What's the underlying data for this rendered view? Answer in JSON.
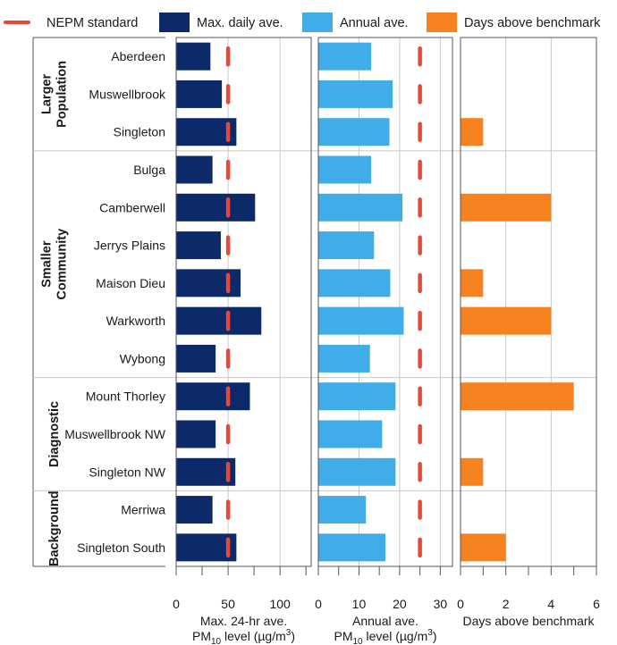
{
  "chart_data": {
    "type": "bar",
    "orientation": "horizontal",
    "legend": {
      "placement": "top",
      "items": [
        {
          "label": "NEPM standard",
          "color": "#e8483a",
          "kind": "dashed-line"
        },
        {
          "label": "Max. daily ave.",
          "color": "#0c2a6a",
          "kind": "box"
        },
        {
          "label": "Annual ave.",
          "color": "#41ade8",
          "kind": "box"
        },
        {
          "label": "Days above benchmark",
          "color": "#f5821f",
          "kind": "box"
        }
      ]
    },
    "groups": [
      {
        "name": "Larger Population",
        "lines": [
          "Larger",
          "Population"
        ],
        "stations": [
          "Aberdeen",
          "Muswellbrook",
          "Singleton"
        ]
      },
      {
        "name": "Smaller Community",
        "lines": [
          "Smaller",
          "Community"
        ],
        "stations": [
          "Bulga",
          "Camberwell",
          "Jerrys Plains",
          "Maison Dieu",
          "Warkworth",
          "Wybong"
        ]
      },
      {
        "name": "Diagnostic",
        "lines": [
          "Diagnostic"
        ],
        "stations": [
          "Mount Thorley",
          "Muswellbrook NW",
          "Singleton NW"
        ]
      },
      {
        "name": "Background",
        "lines": [
          "Background"
        ],
        "stations": [
          "Merriwa",
          "Singleton South"
        ]
      }
    ],
    "panels": [
      {
        "name": "Max. daily ave.",
        "xlabel_line1": "Max. 24-hr ave.",
        "xlabel_line2": "PM",
        "xlabel_sub": "10",
        "xlabel_rest": " level (µg/m",
        "xlabel_sup": "3",
        "xlabel_end": ")",
        "xlim": [
          0,
          130
        ],
        "ticks": [
          0,
          50,
          100
        ],
        "tick_labels": [
          "0",
          "50",
          "100"
        ],
        "minor_step": 25,
        "standard": 50,
        "color": "#0c2a6a",
        "values": [
          33,
          44,
          58,
          35,
          76,
          43,
          62,
          82,
          38,
          71,
          38,
          57,
          35,
          58
        ]
      },
      {
        "name": "Annual ave.",
        "xlabel_line1": "Annual ave.",
        "xlabel_line2": "PM",
        "xlabel_sub": "10",
        "xlabel_rest": " level (µg/m",
        "xlabel_sup": "3",
        "xlabel_end": ")",
        "xlim": [
          0,
          33
        ],
        "ticks": [
          0,
          10,
          20,
          30
        ],
        "tick_labels": [
          "0",
          "10",
          "20",
          "30"
        ],
        "minor_step": 5,
        "standard": 25,
        "color": "#41ade8",
        "values": [
          13,
          18.3,
          17.5,
          13,
          20.7,
          13.7,
          17.7,
          21,
          12.7,
          19,
          15.7,
          19,
          11.7,
          16.5
        ]
      },
      {
        "name": "Days above benchmark",
        "xlabel_line1": "Days above benchmark",
        "xlim": [
          0,
          6
        ],
        "ticks": [
          0,
          2,
          4,
          6
        ],
        "tick_labels": [
          "0",
          "2",
          "4",
          "6"
        ],
        "minor_step": 1,
        "color": "#f5821f",
        "values": [
          0,
          0,
          1,
          0,
          4,
          0,
          1,
          4,
          0,
          5,
          0,
          1,
          0,
          2
        ]
      }
    ]
  }
}
